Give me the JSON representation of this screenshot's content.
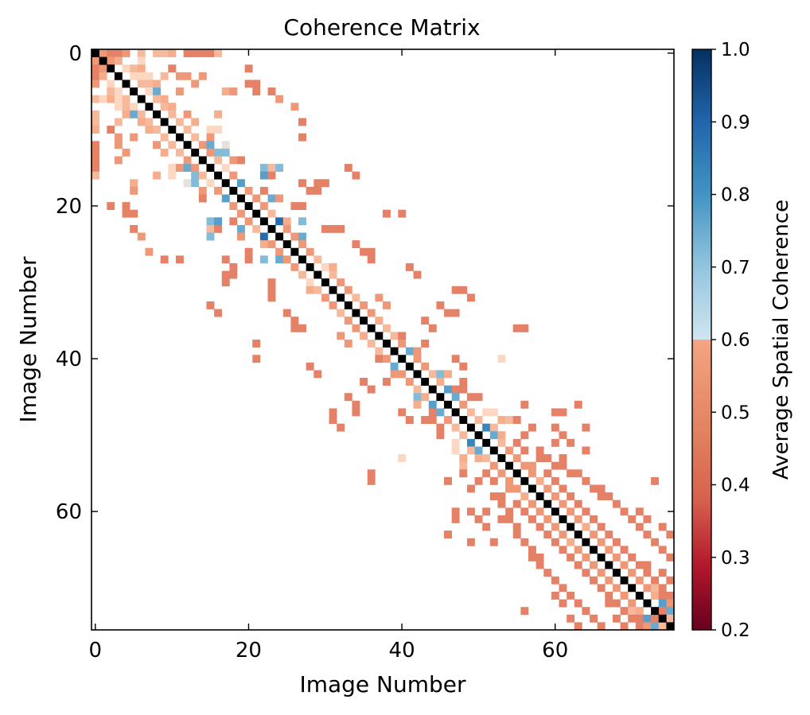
{
  "chart_data": {
    "type": "heatmap",
    "title": "Coherence Matrix",
    "xlabel": "Image Number",
    "ylabel": "Image Number",
    "n_images": 76,
    "xlim": [
      -0.5,
      75.5
    ],
    "ylim": [
      75.5,
      -0.5
    ],
    "x_ticks": [
      0,
      20,
      40,
      60
    ],
    "y_ticks": [
      0,
      20,
      40,
      60
    ],
    "diagonal_color": "#000000",
    "colorbar": {
      "label": "Average Spatial Coherence",
      "range": [
        0.2,
        1.0
      ],
      "ticks": [
        "0.2",
        "0.3",
        "0.4",
        "0.5",
        "0.6",
        "0.7",
        "0.8",
        "0.9",
        "1.0"
      ],
      "colormap": "RdBu",
      "colors": [
        "#67001f",
        "#b2182b",
        "#d6604d",
        "#f4a582",
        "#fddbc7",
        "#d1e5f0",
        "#92c5de",
        "#4393c3",
        "#2166ac",
        "#053061"
      ]
    },
    "cells": [
      [
        0,
        1,
        0.45
      ],
      [
        0,
        2,
        0.42
      ],
      [
        0,
        3,
        0.42
      ],
      [
        0,
        4,
        0.45
      ],
      [
        0,
        6,
        0.5
      ],
      [
        0,
        8,
        0.5
      ],
      [
        0,
        9,
        0.5
      ],
      [
        0,
        10,
        0.48
      ],
      [
        0,
        12,
        0.42
      ],
      [
        0,
        13,
        0.42
      ],
      [
        0,
        14,
        0.42
      ],
      [
        0,
        15,
        0.42
      ],
      [
        0,
        16,
        0.5
      ],
      [
        1,
        2,
        0.45
      ],
      [
        1,
        3,
        0.48
      ],
      [
        1,
        6,
        0.55
      ],
      [
        2,
        4,
        0.55
      ],
      [
        2,
        5,
        0.5
      ],
      [
        2,
        6,
        0.48
      ],
      [
        2,
        10,
        0.42
      ],
      [
        2,
        20,
        0.42
      ],
      [
        3,
        5,
        0.55
      ],
      [
        3,
        6,
        0.55
      ],
      [
        3,
        7,
        0.55
      ],
      [
        3,
        9,
        0.5
      ],
      [
        3,
        11,
        0.45
      ],
      [
        3,
        12,
        0.45
      ],
      [
        3,
        14,
        0.45
      ],
      [
        4,
        6,
        0.5
      ],
      [
        4,
        7,
        0.5
      ],
      [
        4,
        8,
        0.48
      ],
      [
        4,
        13,
        0.45
      ],
      [
        4,
        20,
        0.42
      ],
      [
        4,
        21,
        0.42
      ],
      [
        5,
        7,
        0.55
      ],
      [
        5,
        8,
        0.78
      ],
      [
        5,
        11,
        0.45
      ],
      [
        5,
        17,
        0.48
      ],
      [
        5,
        18,
        0.45
      ],
      [
        5,
        21,
        0.42
      ],
      [
        5,
        23,
        0.42
      ],
      [
        6,
        8,
        0.5
      ],
      [
        6,
        9,
        0.48
      ],
      [
        6,
        24,
        0.45
      ],
      [
        7,
        9,
        0.5
      ],
      [
        7,
        10,
        0.48
      ],
      [
        7,
        26,
        0.45
      ],
      [
        8,
        10,
        0.5
      ],
      [
        8,
        12,
        0.45
      ],
      [
        8,
        16,
        0.48
      ],
      [
        9,
        11,
        0.5
      ],
      [
        9,
        13,
        0.48
      ],
      [
        9,
        27,
        0.42
      ],
      [
        10,
        12,
        0.5
      ],
      [
        10,
        15,
        0.55
      ],
      [
        10,
        16,
        0.55
      ],
      [
        11,
        13,
        0.5
      ],
      [
        11,
        15,
        0.45
      ],
      [
        11,
        27,
        0.42
      ],
      [
        12,
        14,
        0.45
      ],
      [
        12,
        15,
        0.78
      ],
      [
        12,
        17,
        0.6
      ],
      [
        13,
        15,
        0.45
      ],
      [
        13,
        16,
        0.75
      ],
      [
        13,
        17,
        0.75
      ],
      [
        14,
        16,
        0.5
      ],
      [
        14,
        18,
        0.45
      ],
      [
        14,
        19,
        0.42
      ],
      [
        15,
        17,
        0.55
      ],
      [
        15,
        22,
        0.75
      ],
      [
        15,
        23,
        0.5
      ],
      [
        15,
        24,
        0.75
      ],
      [
        15,
        33,
        0.42
      ],
      [
        16,
        18,
        0.45
      ],
      [
        16,
        22,
        0.8
      ],
      [
        16,
        23,
        0.42
      ],
      [
        16,
        34,
        0.42
      ],
      [
        17,
        19,
        0.8
      ],
      [
        17,
        27,
        0.42
      ],
      [
        17,
        29,
        0.42
      ],
      [
        17,
        30,
        0.42
      ],
      [
        18,
        20,
        0.45
      ],
      [
        18,
        22,
        0.42
      ],
      [
        18,
        28,
        0.42
      ],
      [
        18,
        29,
        0.42
      ],
      [
        19,
        21,
        0.45
      ],
      [
        19,
        23,
        0.78
      ],
      [
        19,
        24,
        0.45
      ],
      [
        20,
        22,
        0.45
      ],
      [
        20,
        26,
        0.42
      ],
      [
        20,
        27,
        0.42
      ],
      [
        21,
        23,
        0.5
      ],
      [
        21,
        38,
        0.42
      ],
      [
        21,
        40,
        0.42
      ],
      [
        22,
        24,
        0.9
      ],
      [
        22,
        25,
        0.48
      ],
      [
        22,
        27,
        0.75
      ],
      [
        23,
        25,
        0.45
      ],
      [
        23,
        30,
        0.42
      ],
      [
        23,
        31,
        0.42
      ],
      [
        23,
        32,
        0.42
      ],
      [
        24,
        26,
        0.45
      ],
      [
        24,
        27,
        0.78
      ],
      [
        25,
        27,
        0.45
      ],
      [
        25,
        34,
        0.42
      ],
      [
        26,
        28,
        0.45
      ],
      [
        26,
        35,
        0.42
      ],
      [
        26,
        36,
        0.42
      ],
      [
        27,
        29,
        0.5
      ],
      [
        27,
        36,
        0.42
      ],
      [
        28,
        30,
        0.55
      ],
      [
        28,
        31,
        0.48
      ],
      [
        28,
        41,
        0.42
      ],
      [
        29,
        31,
        0.5
      ],
      [
        29,
        42,
        0.42
      ],
      [
        30,
        32,
        0.45
      ],
      [
        31,
        33,
        0.45
      ],
      [
        31,
        47,
        0.42
      ],
      [
        31,
        48,
        0.42
      ],
      [
        32,
        34,
        0.5
      ],
      [
        32,
        37,
        0.45
      ],
      [
        32,
        49,
        0.42
      ],
      [
        33,
        35,
        0.45
      ],
      [
        33,
        38,
        0.45
      ],
      [
        33,
        45,
        0.42
      ],
      [
        34,
        36,
        0.45
      ],
      [
        34,
        46,
        0.42
      ],
      [
        34,
        47,
        0.42
      ],
      [
        35,
        37,
        0.48
      ],
      [
        35,
        43,
        0.42
      ],
      [
        36,
        38,
        0.5
      ],
      [
        36,
        44,
        0.42
      ],
      [
        36,
        55,
        0.42
      ],
      [
        36,
        56,
        0.42
      ],
      [
        37,
        39,
        0.5
      ],
      [
        37,
        40,
        0.42
      ],
      [
        38,
        40,
        0.45
      ],
      [
        38,
        43,
        0.42
      ],
      [
        39,
        41,
        0.78
      ],
      [
        39,
        42,
        0.45
      ],
      [
        40,
        42,
        0.45
      ],
      [
        40,
        47,
        0.42
      ],
      [
        40,
        53,
        0.55
      ],
      [
        41,
        43,
        0.45
      ],
      [
        41,
        48,
        0.42
      ],
      [
        42,
        44,
        0.5
      ],
      [
        42,
        45,
        0.75
      ],
      [
        42,
        46,
        0.48
      ],
      [
        43,
        45,
        0.48
      ],
      [
        43,
        48,
        0.42
      ],
      [
        44,
        46,
        0.8
      ],
      [
        44,
        47,
        0.42
      ],
      [
        44,
        48,
        0.42
      ],
      [
        45,
        47,
        0.78
      ],
      [
        45,
        49,
        0.42
      ],
      [
        45,
        50,
        0.42
      ],
      [
        46,
        48,
        0.45
      ],
      [
        46,
        56,
        0.42
      ],
      [
        46,
        63,
        0.42
      ],
      [
        47,
        49,
        0.5
      ],
      [
        47,
        51,
        0.55
      ],
      [
        47,
        52,
        0.55
      ],
      [
        47,
        60,
        0.42
      ],
      [
        47,
        61,
        0.42
      ],
      [
        48,
        50,
        0.5
      ],
      [
        48,
        53,
        0.48
      ],
      [
        48,
        54,
        0.5
      ],
      [
        48,
        55,
        0.42
      ],
      [
        49,
        51,
        0.85
      ],
      [
        49,
        52,
        0.5
      ],
      [
        49,
        57,
        0.42
      ],
      [
        49,
        60,
        0.42
      ],
      [
        49,
        64,
        0.42
      ],
      [
        50,
        52,
        0.78
      ],
      [
        50,
        53,
        0.48
      ],
      [
        50,
        56,
        0.42
      ],
      [
        50,
        61,
        0.42
      ],
      [
        51,
        53,
        0.5
      ],
      [
        51,
        55,
        0.42
      ],
      [
        51,
        60,
        0.42
      ],
      [
        51,
        62,
        0.42
      ],
      [
        52,
        54,
        0.45
      ],
      [
        52,
        56,
        0.42
      ],
      [
        52,
        58,
        0.42
      ],
      [
        52,
        64,
        0.42
      ],
      [
        53,
        55,
        0.45
      ],
      [
        53,
        58,
        0.42
      ],
      [
        53,
        59,
        0.42
      ],
      [
        53,
        61,
        0.42
      ],
      [
        54,
        56,
        0.45
      ],
      [
        54,
        57,
        0.45
      ],
      [
        54,
        60,
        0.42
      ],
      [
        54,
        61,
        0.42
      ],
      [
        55,
        57,
        0.45
      ],
      [
        55,
        59,
        0.42
      ],
      [
        55,
        62,
        0.42
      ],
      [
        55,
        63,
        0.42
      ],
      [
        56,
        58,
        0.48
      ],
      [
        56,
        60,
        0.42
      ],
      [
        56,
        64,
        0.42
      ],
      [
        56,
        73,
        0.42
      ],
      [
        57,
        59,
        0.45
      ],
      [
        57,
        61,
        0.42
      ],
      [
        57,
        65,
        0.42
      ],
      [
        57,
        66,
        0.42
      ],
      [
        58,
        60,
        0.45
      ],
      [
        58,
        62,
        0.42
      ],
      [
        58,
        66,
        0.42
      ],
      [
        58,
        67,
        0.42
      ],
      [
        59,
        61,
        0.45
      ],
      [
        59,
        63,
        0.42
      ],
      [
        59,
        68,
        0.42
      ],
      [
        60,
        62,
        0.45
      ],
      [
        60,
        64,
        0.42
      ],
      [
        60,
        69,
        0.42
      ],
      [
        60,
        71,
        0.42
      ],
      [
        61,
        63,
        0.45
      ],
      [
        61,
        65,
        0.42
      ],
      [
        61,
        70,
        0.42
      ],
      [
        61,
        72,
        0.42
      ],
      [
        62,
        64,
        0.48
      ],
      [
        62,
        66,
        0.42
      ],
      [
        62,
        71,
        0.42
      ],
      [
        62,
        74,
        0.42
      ],
      [
        63,
        65,
        0.45
      ],
      [
        63,
        67,
        0.42
      ],
      [
        63,
        72,
        0.42
      ],
      [
        63,
        75,
        0.42
      ],
      [
        64,
        66,
        0.45
      ],
      [
        64,
        68,
        0.42
      ],
      [
        64,
        73,
        0.42
      ],
      [
        65,
        67,
        0.45
      ],
      [
        65,
        69,
        0.42
      ],
      [
        65,
        74,
        0.42
      ],
      [
        66,
        68,
        0.45
      ],
      [
        66,
        70,
        0.42
      ],
      [
        66,
        75,
        0.42
      ],
      [
        67,
        69,
        0.45
      ],
      [
        67,
        71,
        0.42
      ],
      [
        67,
        72,
        0.42
      ],
      [
        68,
        70,
        0.45
      ],
      [
        68,
        72,
        0.42
      ],
      [
        68,
        74,
        0.42
      ],
      [
        69,
        71,
        0.45
      ],
      [
        69,
        73,
        0.42
      ],
      [
        69,
        75,
        0.42
      ],
      [
        70,
        72,
        0.45
      ],
      [
        70,
        73,
        0.5
      ],
      [
        70,
        74,
        0.42
      ],
      [
        71,
        73,
        0.48
      ],
      [
        71,
        74,
        0.42
      ],
      [
        71,
        75,
        0.42
      ],
      [
        72,
        74,
        0.8
      ],
      [
        72,
        75,
        0.45
      ],
      [
        73,
        75,
        0.78
      ],
      [
        73,
        74,
        0.42
      ],
      [
        74,
        75,
        0.5
      ]
    ]
  }
}
